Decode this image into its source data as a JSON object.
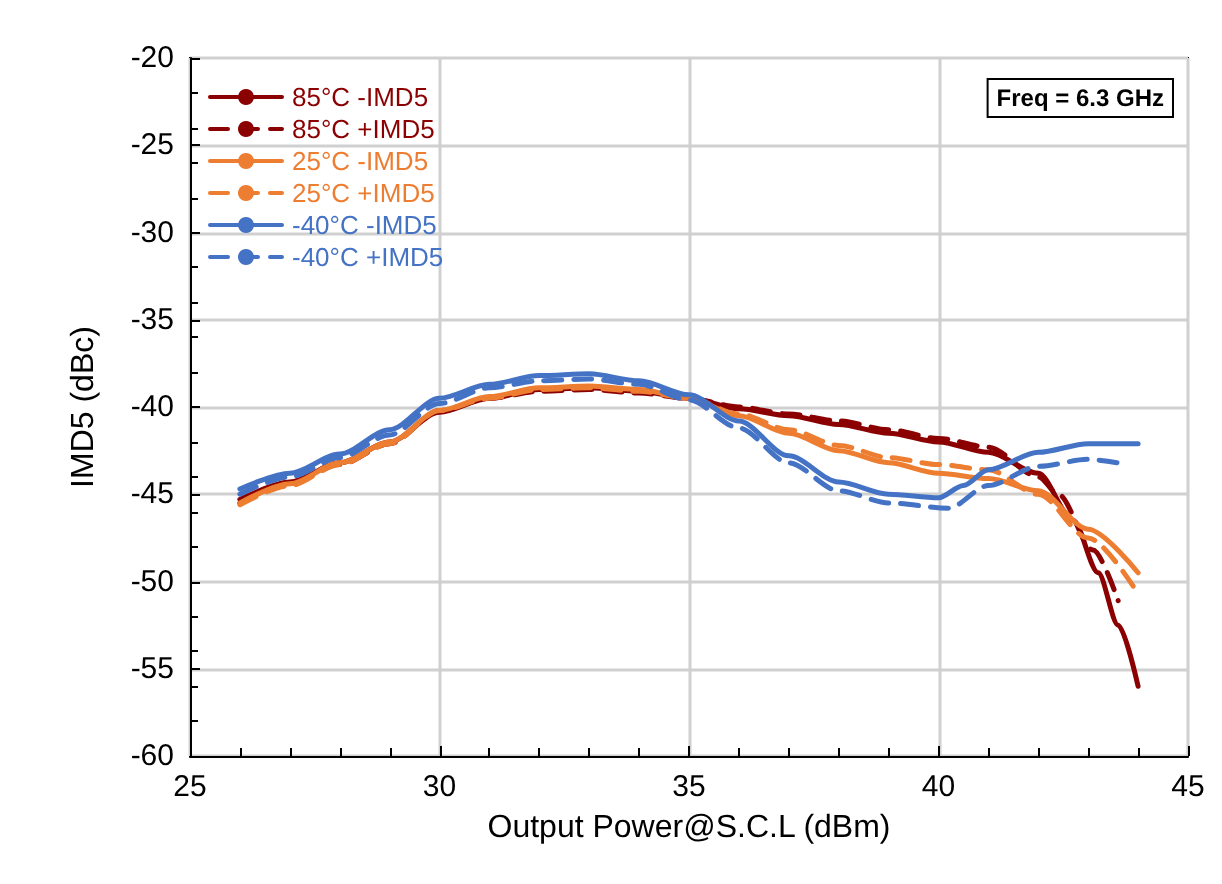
{
  "chart_data": {
    "type": "line",
    "xlabel": "Output Power@S.C.L (dBm)",
    "ylabel": "IMD5 (dBc)",
    "xlim": [
      25,
      45
    ],
    "xticks": [
      25,
      30,
      35,
      40,
      45
    ],
    "ylim": [
      -60,
      -20
    ],
    "yticks": [
      -60,
      -55,
      -50,
      -45,
      -40,
      -35,
      -30,
      -25,
      -20
    ],
    "grid": true,
    "legend": "top left",
    "marker": "none",
    "annotations": [
      "Freq = 6.3 GHz"
    ],
    "series": [
      {
        "name": "85°C -IMD5",
        "color": "#8b0000",
        "line_style": "solid",
        "x": [
          26,
          27,
          28,
          29,
          30,
          31,
          32,
          33,
          34,
          35,
          36,
          37,
          38,
          39,
          40,
          41,
          42,
          42.7,
          43.2,
          43.6,
          44
        ],
        "values": [
          -45.3,
          -44.3,
          -43.2,
          -42,
          -40.3,
          -39.5,
          -39,
          -38.9,
          -39.1,
          -39.5,
          -40.1,
          -40.5,
          -41,
          -41.5,
          -42,
          -42.6,
          -43.8,
          -46.5,
          -49.5,
          -52.5,
          -56
        ]
      },
      {
        "name": "85°C +IMD5",
        "color": "#8b0000",
        "line_style": "dashed",
        "x": [
          26,
          27,
          28,
          29,
          30,
          31,
          32,
          33,
          34,
          35,
          36,
          37,
          38,
          39,
          40,
          41,
          42,
          42.4,
          43.1,
          43.6
        ],
        "values": [
          -45.5,
          -44.4,
          -43.3,
          -42.1,
          -40.2,
          -39.5,
          -39.1,
          -39,
          -39.2,
          -39.5,
          -40,
          -40.4,
          -40.8,
          -41.3,
          -41.8,
          -42.3,
          -44,
          -45,
          -48.2,
          -51.1
        ]
      },
      {
        "name": "25°C -IMD5",
        "color": "#ed7d31",
        "line_style": "solid",
        "x": [
          26,
          27,
          28,
          29,
          30,
          31,
          32,
          33,
          34,
          35,
          36,
          37,
          38,
          39,
          40,
          41,
          42,
          43,
          44
        ],
        "values": [
          -45.5,
          -44.4,
          -43.2,
          -42,
          -40.2,
          -39.4,
          -38.9,
          -38.8,
          -39,
          -39.5,
          -40.5,
          -41.5,
          -42.5,
          -43.2,
          -43.8,
          -44.1,
          -44.8,
          -47,
          -49.5
        ]
      },
      {
        "name": "25°C +IMD5",
        "color": "#ed7d31",
        "line_style": "dashed",
        "x": [
          26,
          27,
          28,
          29,
          30,
          31,
          32,
          33,
          34,
          35,
          36,
          37,
          38,
          39,
          40,
          41,
          42,
          43,
          44
        ],
        "values": [
          -45.6,
          -44.5,
          -43.3,
          -42.1,
          -40.2,
          -39.5,
          -39,
          -38.9,
          -39.1,
          -39.5,
          -40.4,
          -41.3,
          -42.2,
          -42.9,
          -43.3,
          -43.6,
          -45,
          -47.5,
          -50.7
        ]
      },
      {
        "name": "-40°C -IMD5",
        "color": "#4472c4",
        "line_style": "solid",
        "x": [
          26,
          27,
          28,
          29,
          30,
          31,
          32,
          33,
          34,
          35,
          36,
          37,
          38,
          39,
          40,
          40.5,
          41,
          42,
          43,
          44
        ],
        "values": [
          -44.7,
          -43.8,
          -42.7,
          -41.3,
          -39.5,
          -38.7,
          -38.2,
          -38.1,
          -38.5,
          -39.3,
          -40.8,
          -42.8,
          -44.3,
          -45,
          -45.2,
          -44.5,
          -43.6,
          -42.6,
          -42.1,
          -42.1
        ]
      },
      {
        "name": "-40°C +IMD5",
        "color": "#4472c4",
        "line_style": "dashed",
        "x": [
          26,
          27,
          28,
          29,
          30,
          31,
          32,
          33,
          34,
          35,
          36,
          37,
          38,
          39,
          40.2,
          41,
          42,
          43,
          43.6
        ],
        "values": [
          -45,
          -44,
          -42.9,
          -41.6,
          -39.8,
          -38.9,
          -38.5,
          -38.4,
          -38.7,
          -39.6,
          -41.2,
          -43.2,
          -44.8,
          -45.5,
          -45.8,
          -44.5,
          -43.4,
          -43,
          -43.2
        ]
      }
    ]
  }
}
